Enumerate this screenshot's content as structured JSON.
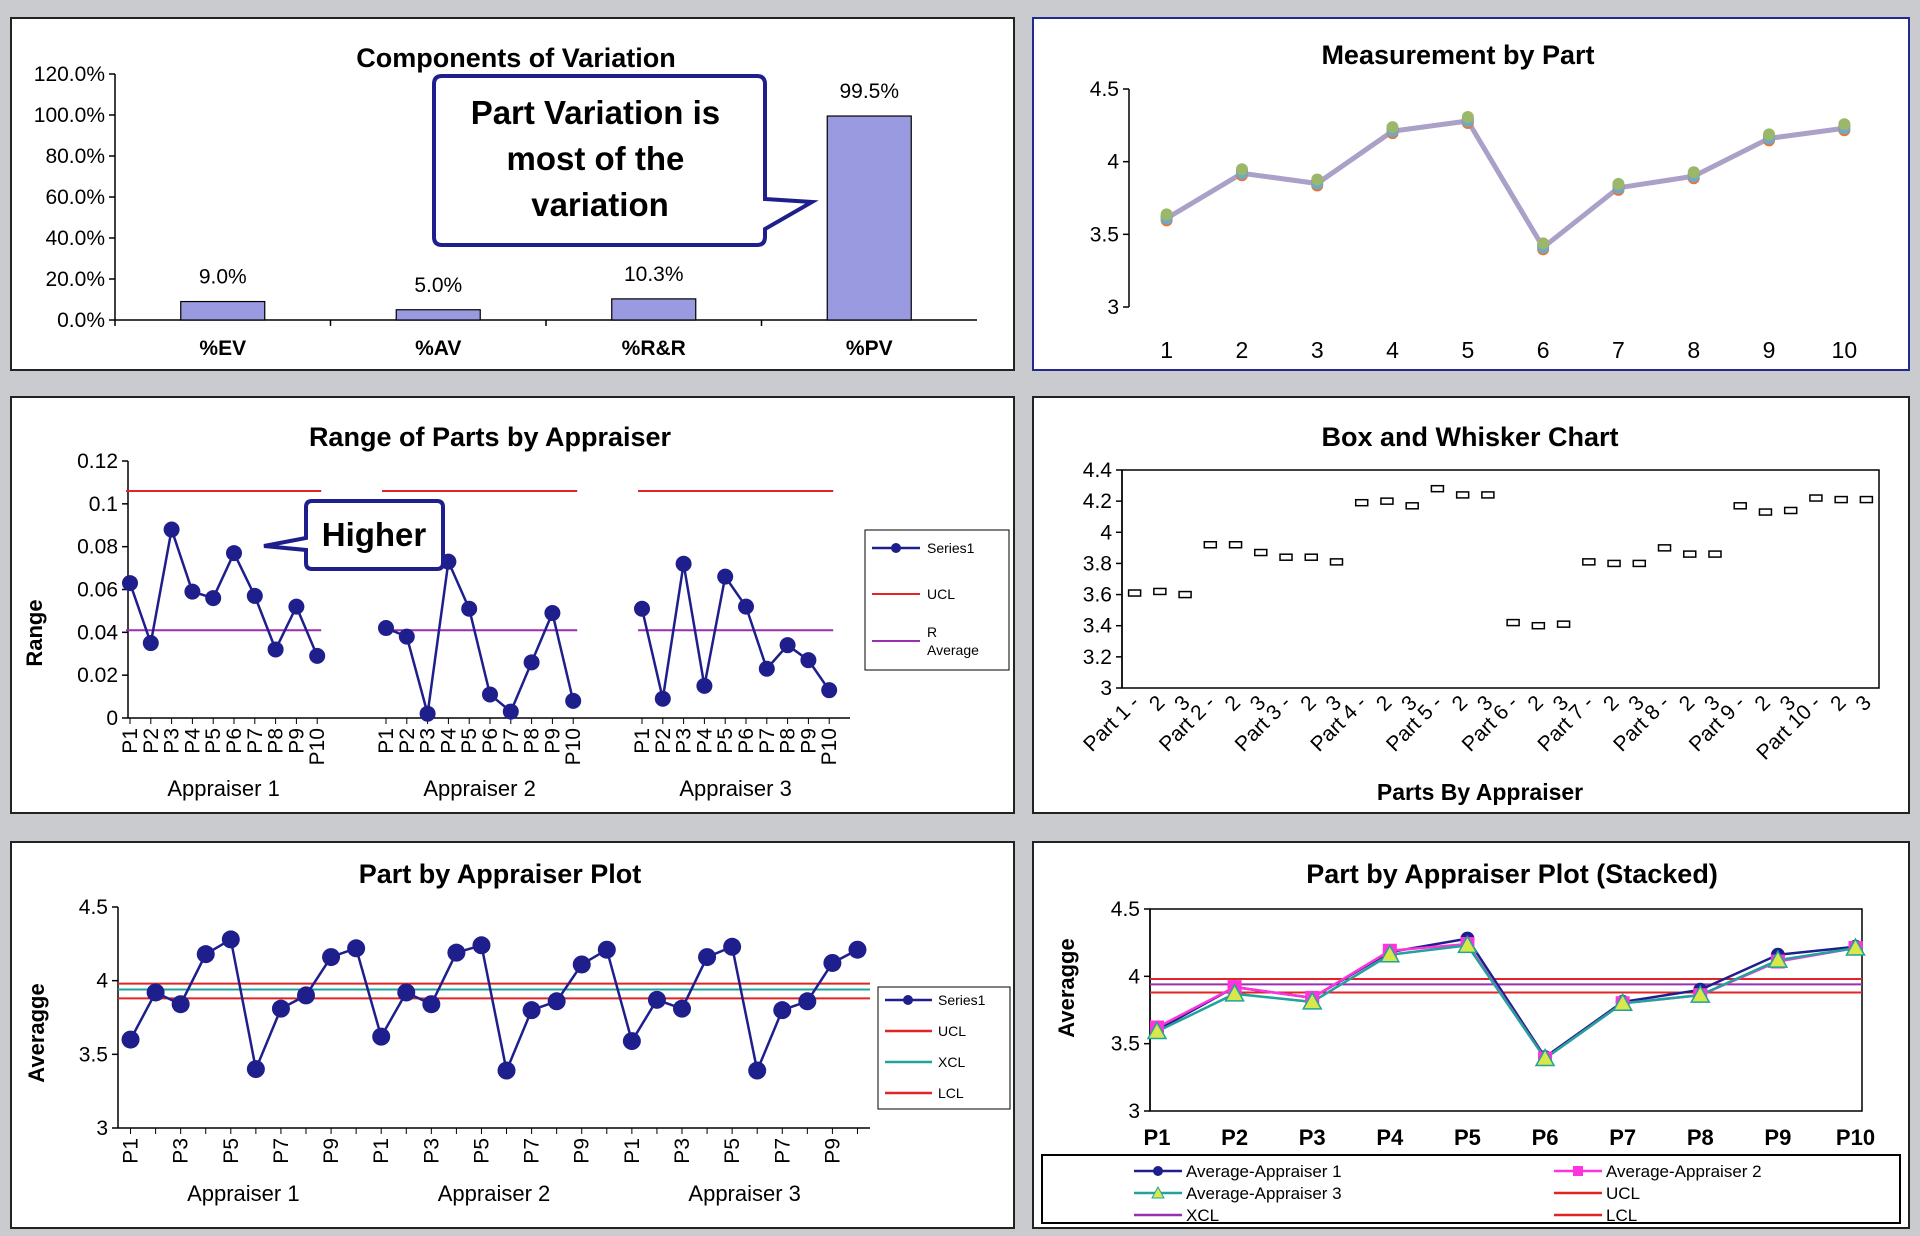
{
  "colors": {
    "navy": "#1e1e8c",
    "red": "#e22424",
    "purple": "#9a2fb0",
    "teal": "#1fa39a",
    "bar": "#9a9ae0",
    "magenta": "#ff33dd",
    "lineGray": "#aaa0c8"
  },
  "chart_data": [
    {
      "id": "components",
      "type": "bar",
      "title": "Components  of Variation",
      "categories": [
        "%EV",
        "%AV",
        "%R&R",
        "%PV"
      ],
      "values": [
        9.0,
        5.0,
        10.3,
        99.5
      ],
      "data_labels": [
        "9.0%",
        "5.0%",
        "10.3%",
        "99.5%"
      ],
      "ylim": [
        0,
        120
      ],
      "yticks": [
        "0.0%",
        "20.0%",
        "40.0%",
        "60.0%",
        "80.0%",
        "100.0%",
        "120.0%"
      ],
      "annotation": "Part Variation is most of the variation"
    },
    {
      "id": "measurement",
      "type": "line",
      "title": "Measurement by Part",
      "x": [
        "1",
        "2",
        "3",
        "4",
        "5",
        "6",
        "7",
        "8",
        "9",
        "10"
      ],
      "values": [
        3.61,
        3.92,
        3.85,
        4.21,
        4.28,
        3.41,
        3.82,
        3.9,
        4.16,
        4.23
      ],
      "ylim": [
        3,
        4.5
      ],
      "yticks": [
        "3",
        "3.5",
        "4",
        "4.5"
      ]
    },
    {
      "id": "range",
      "type": "line",
      "title": "Range of Parts by Appraiser",
      "ylabel": "Range",
      "groups": [
        "Appraiser 1",
        "Appraiser 2",
        "Appraiser 3"
      ],
      "parts": [
        "P1",
        "P2",
        "P3",
        "P4",
        "P5",
        "P6",
        "P7",
        "P8",
        "P9",
        "P10"
      ],
      "series": [
        {
          "name": "Appraiser 1",
          "values": [
            0.063,
            0.035,
            0.088,
            0.059,
            0.056,
            0.077,
            0.057,
            0.032,
            0.052,
            0.029
          ]
        },
        {
          "name": "Appraiser 2",
          "values": [
            0.042,
            0.038,
            0.002,
            0.073,
            0.051,
            0.011,
            0.003,
            0.026,
            0.049,
            0.008
          ]
        },
        {
          "name": "Appraiser 3",
          "values": [
            0.051,
            0.009,
            0.072,
            0.015,
            0.066,
            0.052,
            0.023,
            0.034,
            0.027,
            0.013
          ]
        }
      ],
      "ucl": 0.106,
      "r_average": 0.041,
      "ylim": [
        0,
        0.12
      ],
      "yticks": [
        "0",
        "0.02",
        "0.04",
        "0.06",
        "0.08",
        "0.1",
        "0.12"
      ],
      "legend": [
        "Series1",
        "UCL",
        "R Average"
      ],
      "annotation": "Higher"
    },
    {
      "id": "boxwhisker",
      "type": "box",
      "title": "Box and Whisker Chart",
      "xlabel": "Parts By Appraiser",
      "medians": [
        3.61,
        3.62,
        3.6,
        3.92,
        3.92,
        3.87,
        3.84,
        3.84,
        3.81,
        4.19,
        4.2,
        4.17,
        4.28,
        4.24,
        4.24,
        3.42,
        3.4,
        3.41,
        3.81,
        3.8,
        3.8,
        3.9,
        3.86,
        3.86,
        4.17,
        4.13,
        4.14,
        4.22,
        4.21,
        4.21
      ],
      "xticklabels": [
        "Part 1 -",
        "2",
        "3",
        "Part 2 -",
        "2",
        "3",
        "Part 3 -",
        "2",
        "3",
        "Part 4 -",
        "2",
        "3",
        "Part 5 -",
        "2",
        "3",
        "Part 6 -",
        "2",
        "3",
        "Part 7 -",
        "2",
        "3",
        "Part 8 -",
        "2",
        "3",
        "Part 9 -",
        "2",
        "3",
        "Part 10 -",
        "2",
        "3"
      ],
      "ylim": [
        3,
        4.4
      ],
      "yticks": [
        "3",
        "3.2",
        "3.4",
        "3.6",
        "3.8",
        "4",
        "4.2",
        "4.4"
      ]
    },
    {
      "id": "partbyappraiser",
      "type": "line",
      "title": "Part by Appraiser Plot",
      "ylabel": "Averagge",
      "groups": [
        "Appraiser 1",
        "Appraiser 2",
        "Appraiser 3"
      ],
      "parts": [
        "P1",
        "",
        "P3",
        "",
        "P5",
        "",
        "P7",
        "",
        "P9",
        ""
      ],
      "series": [
        {
          "name": "Appraiser 1",
          "values": [
            3.6,
            3.92,
            3.84,
            4.18,
            4.28,
            3.4,
            3.81,
            3.9,
            4.16,
            4.22
          ]
        },
        {
          "name": "Appraiser 2",
          "values": [
            3.62,
            3.92,
            3.84,
            4.19,
            4.24,
            3.39,
            3.8,
            3.86,
            4.11,
            4.21
          ]
        },
        {
          "name": "Appraiser 3",
          "values": [
            3.59,
            3.87,
            3.81,
            4.16,
            4.23,
            3.39,
            3.8,
            3.86,
            4.12,
            4.21
          ]
        }
      ],
      "ucl": 3.98,
      "xcl": 3.94,
      "lcl": 3.88,
      "ylim": [
        3,
        4.5
      ],
      "yticks": [
        "3",
        "3.5",
        "4",
        "4.5"
      ],
      "legend": [
        "Series1",
        "UCL",
        "XCL",
        "LCL"
      ]
    },
    {
      "id": "stacked",
      "type": "line",
      "title": "Part by Appraiser Plot (Stacked)",
      "ylabel": "Averagge",
      "x": [
        "P1",
        "P2",
        "P3",
        "P4",
        "P5",
        "P6",
        "P7",
        "P8",
        "P9",
        "P10"
      ],
      "series": [
        {
          "name": "Average-Appraiser 1",
          "values": [
            3.6,
            3.92,
            3.84,
            4.18,
            4.28,
            3.4,
            3.81,
            3.9,
            4.16,
            4.22
          ]
        },
        {
          "name": "Average-Appraiser 2",
          "values": [
            3.62,
            3.92,
            3.84,
            4.19,
            4.24,
            3.39,
            3.8,
            3.86,
            4.11,
            4.21
          ]
        },
        {
          "name": "Average-Appraiser 3",
          "values": [
            3.59,
            3.87,
            3.81,
            4.16,
            4.23,
            3.39,
            3.8,
            3.86,
            4.12,
            4.21
          ]
        }
      ],
      "ucl": 3.98,
      "xcl": 3.94,
      "lcl": 3.88,
      "ylim": [
        3,
        4.5
      ],
      "yticks": [
        "3",
        "3.5",
        "4",
        "4.5"
      ],
      "legend": [
        "Average-Appraiser 1",
        "Average-Appraiser 2",
        "Average-Appraiser 3",
        "UCL",
        "XCL",
        "LCL"
      ]
    }
  ]
}
